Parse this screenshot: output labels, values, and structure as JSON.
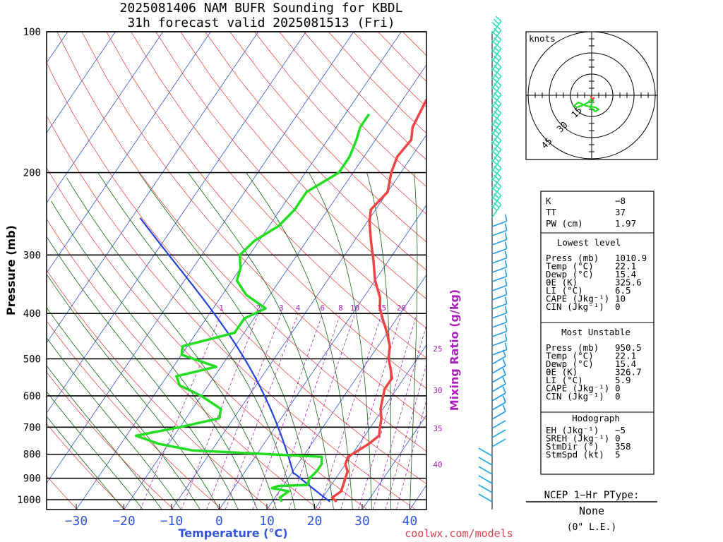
{
  "chart_data": {
    "type": "line",
    "title": "2025081406 NAM BUFR Sounding for KBDL",
    "subtitle": "31h forecast valid 2025081513 (Fri)",
    "xlabel": "Temperature (°C)",
    "ylabel": "Pressure (mb)",
    "mixing_ratio_label": "Mixing Ratio (g/kg)",
    "pressure_ticks": [
      "100",
      "200",
      "300",
      "400",
      "500",
      "600",
      "700",
      "800",
      "900",
      "1000"
    ],
    "pressure_tick_values": [
      100,
      200,
      300,
      400,
      500,
      600,
      700,
      800,
      900,
      1000
    ],
    "temperature_ticks": [
      "−30",
      "−20",
      "−10",
      "0",
      "10",
      "20",
      "30",
      "40"
    ],
    "temperature_tick_values": [
      -30,
      -20,
      -10,
      0,
      10,
      20,
      30,
      40
    ],
    "mixing_ratio_top_labels": [
      "1",
      "2",
      "3",
      "4",
      "6",
      "8",
      "10",
      "15",
      "20"
    ],
    "mixing_ratio_top_values": [
      1,
      2,
      3,
      4,
      6,
      8,
      10,
      15,
      20
    ],
    "mixing_ratio_side_labels": [
      "25",
      "30",
      "35",
      "40"
    ],
    "mixing_ratio_side_values": [
      25,
      30,
      35,
      40
    ],
    "xlim": [
      -40,
      42
    ],
    "ylim": [
      1050,
      100
    ],
    "series": [
      {
        "name": "Temperature",
        "color": "#ee4444",
        "points": [
          [
            1010,
            23.5
          ],
          [
            990,
            22
          ],
          [
            960,
            23
          ],
          [
            930,
            22.5
          ],
          [
            900,
            22
          ],
          [
            870,
            21.5
          ],
          [
            840,
            20
          ],
          [
            810,
            19.5
          ],
          [
            790,
            20.5
          ],
          [
            760,
            22
          ],
          [
            730,
            23
          ],
          [
            700,
            22
          ],
          [
            670,
            21
          ],
          [
            640,
            19.5
          ],
          [
            610,
            18.5
          ],
          [
            580,
            17.5
          ],
          [
            550,
            17.5
          ],
          [
            520,
            15.5
          ],
          [
            500,
            14
          ],
          [
            470,
            12.5
          ],
          [
            440,
            10
          ],
          [
            410,
            7
          ],
          [
            390,
            5
          ],
          [
            370,
            3.5
          ],
          [
            340,
            0
          ],
          [
            310,
            -3
          ],
          [
            280,
            -6.5
          ],
          [
            255,
            -9.5
          ],
          [
            240,
            -11
          ],
          [
            220,
            -10
          ],
          [
            200,
            -12
          ],
          [
            185,
            -13
          ],
          [
            170,
            -12.5
          ],
          [
            160,
            -14
          ],
          [
            140,
            -15
          ],
          [
            125,
            -13
          ],
          [
            115,
            -9
          ],
          [
            105,
            -6
          ],
          [
            100,
            -5
          ]
        ]
      },
      {
        "name": "Dewpoint",
        "color": "#22dd22",
        "points": [
          [
            1010,
            12
          ],
          [
            990,
            11
          ],
          [
            960,
            12
          ],
          [
            945,
            8
          ],
          [
            935,
            9
          ],
          [
            930,
            15
          ],
          [
            900,
            14.5
          ],
          [
            870,
            15
          ],
          [
            840,
            15
          ],
          [
            810,
            14
          ],
          [
            785,
            -14
          ],
          [
            760,
            -22
          ],
          [
            730,
            -28
          ],
          [
            700,
            -20
          ],
          [
            670,
            -13
          ],
          [
            640,
            -14
          ],
          [
            600,
            -20
          ],
          [
            570,
            -26
          ],
          [
            545,
            -28
          ],
          [
            520,
            -21
          ],
          [
            490,
            -30
          ],
          [
            470,
            -31
          ],
          [
            440,
            -22
          ],
          [
            410,
            -22
          ],
          [
            390,
            -19
          ],
          [
            365,
            -25
          ],
          [
            340,
            -29
          ],
          [
            320,
            -30
          ],
          [
            300,
            -32
          ],
          [
            280,
            -31
          ],
          [
            260,
            -28
          ],
          [
            240,
            -27
          ],
          [
            220,
            -27
          ],
          [
            200,
            -23
          ],
          [
            185,
            -23
          ],
          [
            170,
            -24
          ],
          [
            160,
            -25
          ],
          [
            150,
            -25
          ]
        ]
      }
    ],
    "hodograph": {
      "unit_label": "knots",
      "ring_labels": [
        "15",
        "30",
        "45"
      ],
      "ring_values": [
        15,
        30,
        45
      ]
    }
  },
  "info": {
    "k_label": "K",
    "k_value": "−8",
    "tt_label": "TT",
    "tt_value": "37",
    "pw_label": "PW (cm)",
    "pw_value": "1.97",
    "lowest_title": "Lowest level",
    "lowest": [
      {
        "label": "Press (mb)",
        "value": "1010.9"
      },
      {
        "label": "Temp (°C)",
        "value": "22.1"
      },
      {
        "label": "Dewp (°C)",
        "value": "15.4"
      },
      {
        "label": "θE (K)",
        "value": "325.6"
      },
      {
        "label": "LI (°C)",
        "value": "6.5"
      },
      {
        "label": "CAPE (Jkg⁻¹)",
        "value": "10"
      },
      {
        "label": "CIN (Jkg⁻¹)",
        "value": "0"
      }
    ],
    "unstable_title": "Most Unstable",
    "unstable": [
      {
        "label": "Press (mb)",
        "value": "950.5"
      },
      {
        "label": "Temp (°C)",
        "value": "22.1"
      },
      {
        "label": "Dewp (°C)",
        "value": "15.4"
      },
      {
        "label": "θE (K)",
        "value": "326.7"
      },
      {
        "label": "LI (°C)",
        "value": "5.9"
      },
      {
        "label": "CAPE (Jkg⁻¹)",
        "value": "0"
      },
      {
        "label": "CIN (Jkg⁻¹)",
        "value": "0"
      }
    ],
    "hodo_title": "Hodograph",
    "hodo": [
      {
        "label": "EH (Jkg⁻¹)",
        "value": "−5"
      },
      {
        "label": "SREH (Jkg⁻¹)",
        "value": "0"
      },
      {
        "label": "StmDir (°)",
        "value": "358"
      },
      {
        "label": "StmSpd (kt)",
        "value": "5"
      }
    ]
  },
  "ptype": {
    "title": "NCEP 1−Hr PType:",
    "value": "None",
    "sub": "(0\" L.E.)"
  },
  "footer": "coolwx.com/models"
}
